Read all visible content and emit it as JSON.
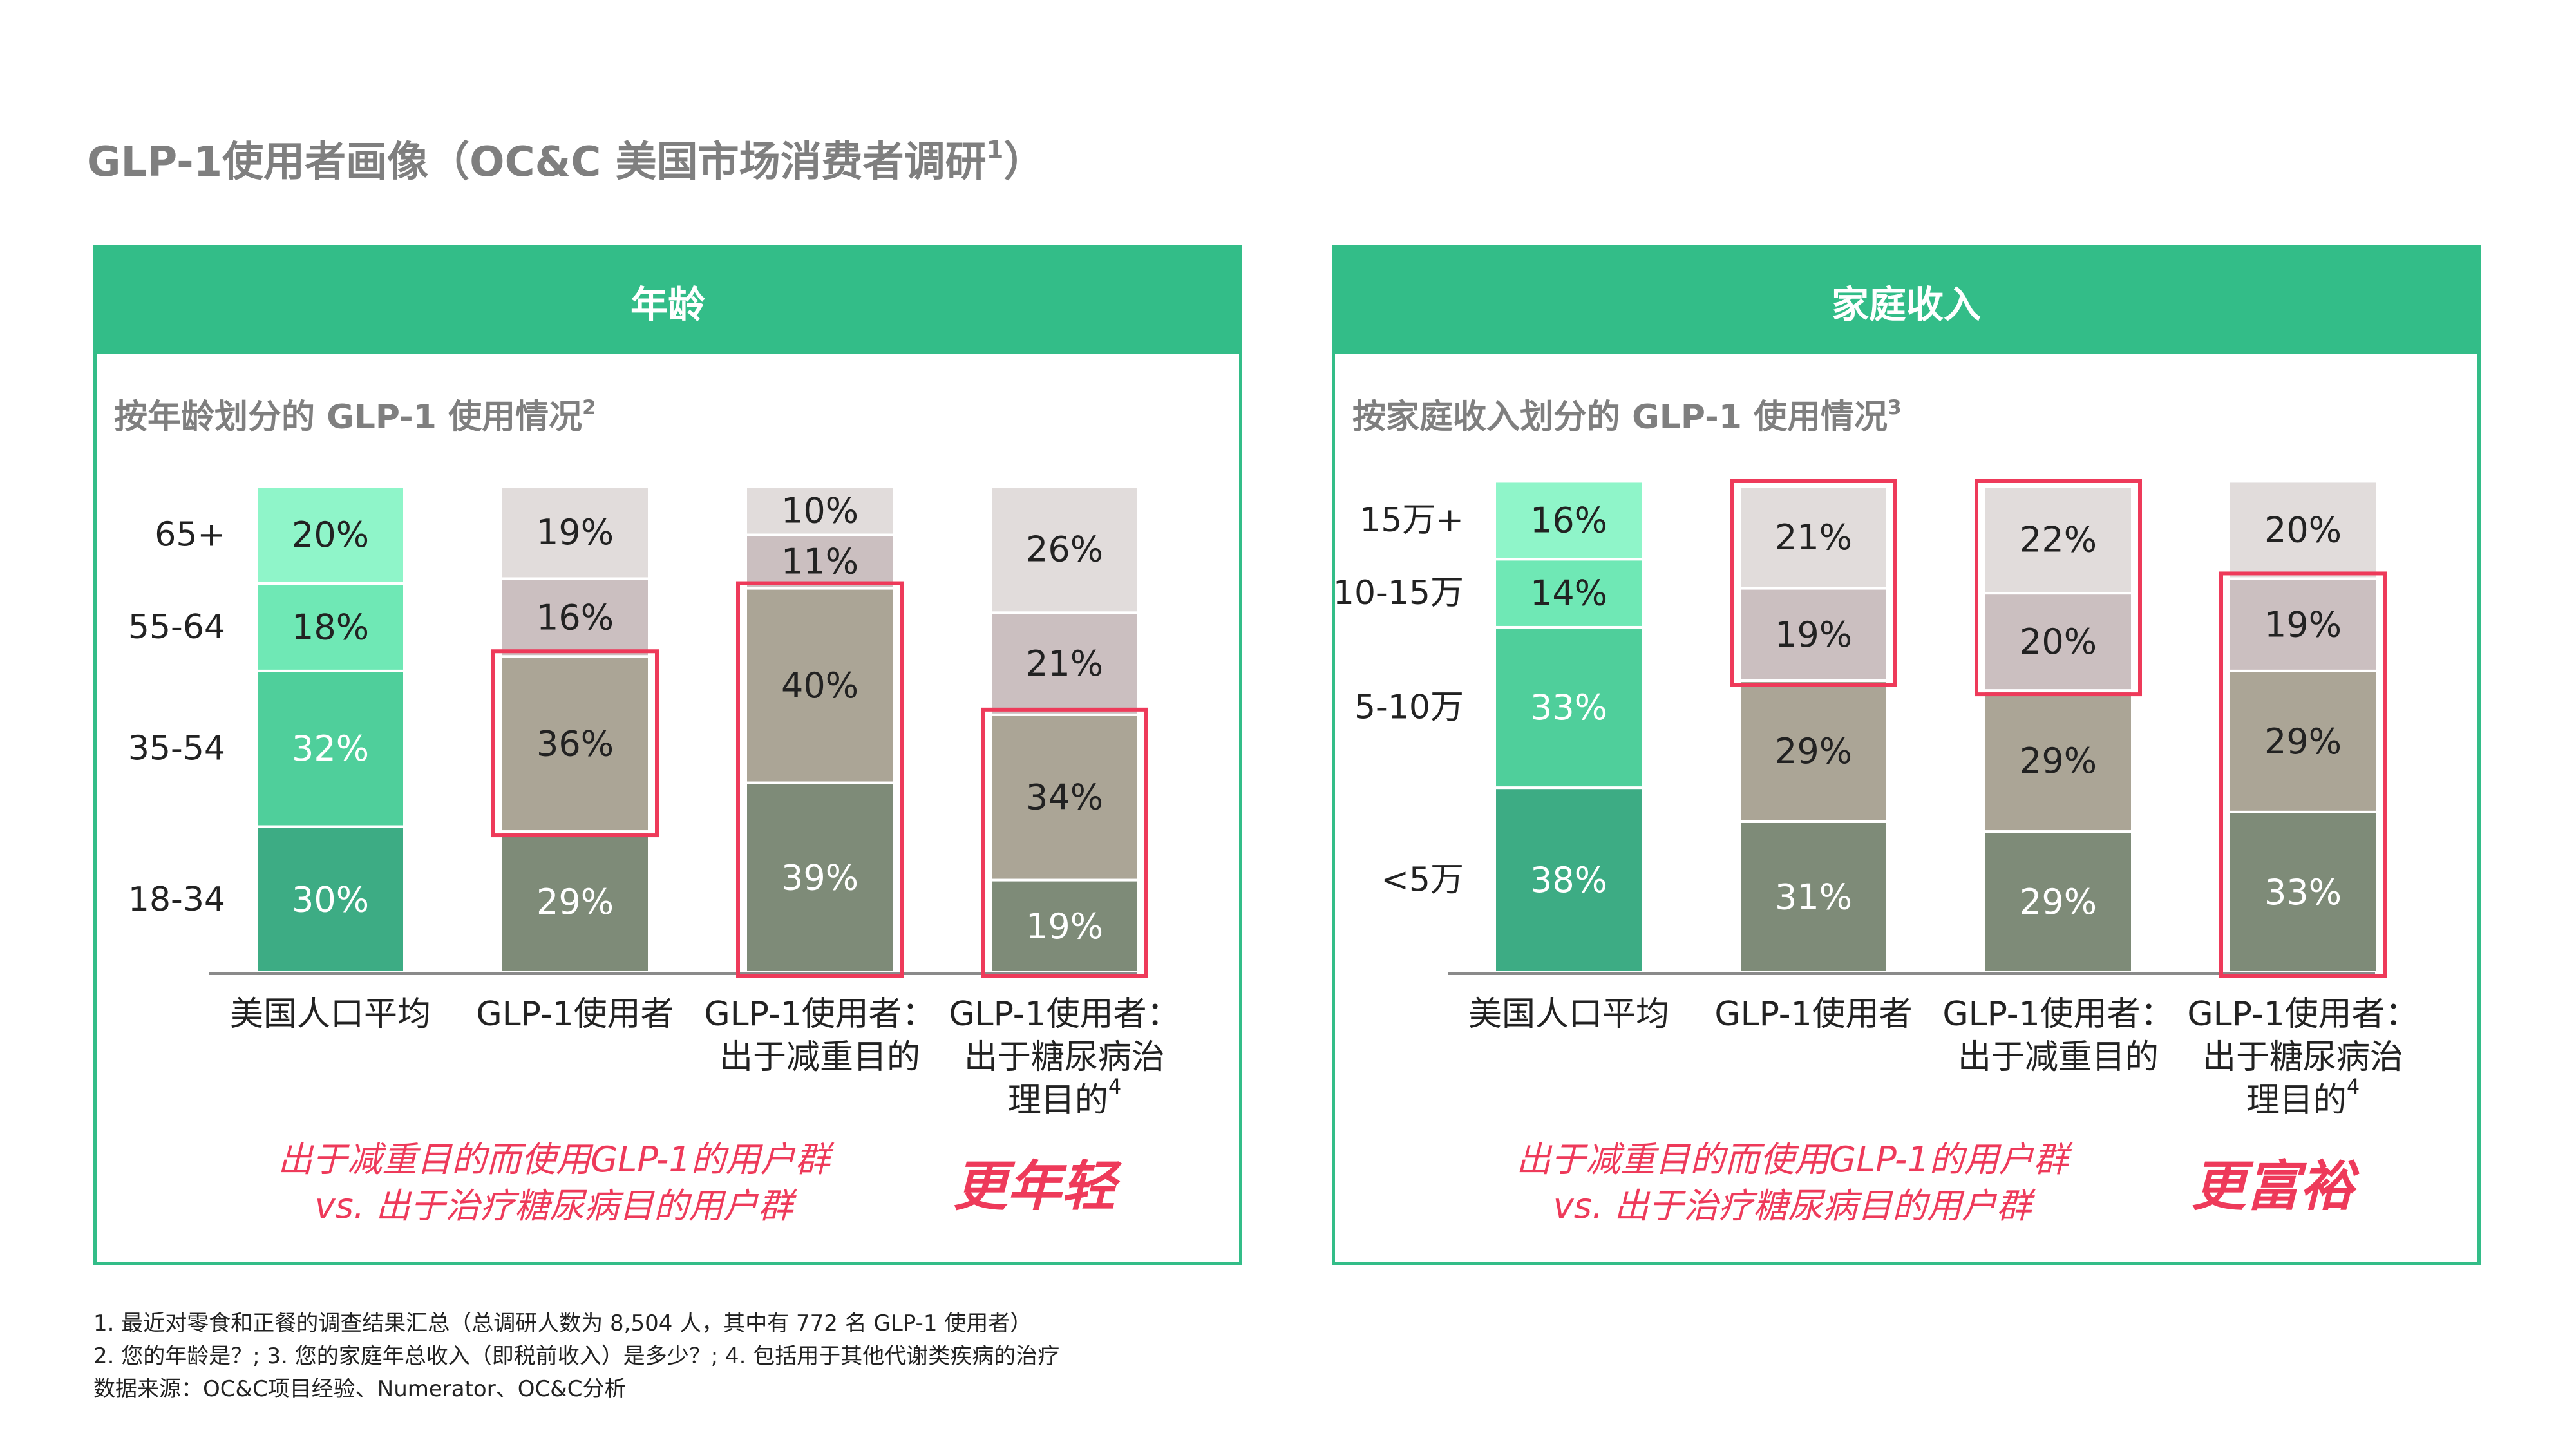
{
  "slide_title": "GLP-1使用者画像（OC&C 美国市场消费者调研",
  "slide_title_sup": "1",
  "slide_title_close": "）",
  "colors": {
    "panel_green": "#33bd88",
    "accent_red": "#ee3a5a",
    "title_grey": "#7f7f7f",
    "segments_population": [
      "#3dac84",
      "#4fcf9b",
      "#6fe8b5",
      "#8ff5c9"
    ],
    "segments_glp1": [
      "#7e8b78",
      "#aba596",
      "#cbbfc0",
      "#e1dcdb"
    ]
  },
  "panels": {
    "age": {
      "header": "年龄",
      "subtitle": "按年龄划分的 GLP-1 使用情况",
      "subtitle_sup": "2",
      "conclusion_line1": "出于减重目的而使用GLP-1的用户群",
      "conclusion_line2": "vs. 出于治疗糖尿病目的用户群",
      "highlight": "更年轻"
    },
    "income": {
      "header": "家庭收入",
      "subtitle": "按家庭收入划分的 GLP-1 使用情况",
      "subtitle_sup": "3",
      "conclusion_line1": "出于减重目的而使用GLP-1的用户群",
      "conclusion_line2": "vs. 出于治疗糖尿病目的用户群",
      "highlight": "更富裕"
    }
  },
  "chart_data": [
    {
      "type": "bar",
      "stacked": true,
      "normalized_percent": true,
      "title": "按年龄划分的 GLP-1 使用情况",
      "categories": [
        "美国人口平均",
        "GLP-1使用者",
        "GLP-1使用者：出于减重目的",
        "GLP-1使用者：出于糖尿病治理目的"
      ],
      "category_label_lines": [
        [
          "美国人口平均"
        ],
        [
          "GLP-1使用者"
        ],
        [
          "GLP-1使用者：",
          "出于减重目的"
        ],
        [
          "GLP-1使用者：",
          "出于糖尿病治",
          "理目的"
        ]
      ],
      "category_label_sup": [
        "",
        "",
        "",
        "4"
      ],
      "series": [
        {
          "name": "18-34",
          "values": [
            30,
            29,
            39,
            19
          ]
        },
        {
          "name": "35-54",
          "values": [
            32,
            36,
            40,
            34
          ]
        },
        {
          "name": "55-64",
          "values": [
            18,
            16,
            11,
            21
          ]
        },
        {
          "name": "65+",
          "values": [
            20,
            19,
            10,
            26
          ]
        }
      ],
      "series_labels": [
        "18-34",
        "35-54",
        "55-64",
        "65+"
      ],
      "highlighted": [
        {
          "category_index": 1,
          "series": [
            "35-54"
          ]
        },
        {
          "category_index": 2,
          "series": [
            "18-34",
            "35-54"
          ]
        },
        {
          "category_index": 3,
          "series": [
            "18-34",
            "35-54"
          ]
        }
      ],
      "ylim": [
        0,
        100
      ]
    },
    {
      "type": "bar",
      "stacked": true,
      "normalized_percent": true,
      "title": "按家庭收入划分的 GLP-1 使用情况",
      "categories": [
        "美国人口平均",
        "GLP-1使用者",
        "GLP-1使用者：出于减重目的",
        "GLP-1使用者：出于糖尿病治理目的"
      ],
      "category_label_lines": [
        [
          "美国人口平均"
        ],
        [
          "GLP-1使用者"
        ],
        [
          "GLP-1使用者：",
          "出于减重目的"
        ],
        [
          "GLP-1使用者：",
          "出于糖尿病治",
          "理目的"
        ]
      ],
      "category_label_sup": [
        "",
        "",
        "",
        "4"
      ],
      "series": [
        {
          "name": "<5万",
          "values": [
            38,
            31,
            29,
            33
          ]
        },
        {
          "name": "5-10万",
          "values": [
            33,
            29,
            29,
            29
          ]
        },
        {
          "name": "10-15万",
          "values": [
            14,
            19,
            20,
            19
          ]
        },
        {
          "name": "15万+",
          "values": [
            16,
            21,
            22,
            20
          ]
        }
      ],
      "series_labels": [
        "<5万",
        "5-10万",
        "10-15万",
        "15万+"
      ],
      "highlighted": [
        {
          "category_index": 1,
          "series": [
            "10-15万",
            "15万+"
          ]
        },
        {
          "category_index": 2,
          "series": [
            "10-15万",
            "15万+"
          ]
        },
        {
          "category_index": 3,
          "series": [
            "<5万",
            "5-10万",
            "10-15万"
          ]
        }
      ],
      "ylim": [
        0,
        100
      ]
    }
  ],
  "footnotes": [
    "1. 最近对零食和正餐的调查结果汇总（总调研人数为 8,504 人，其中有 772 名 GLP-1 使用者）",
    "2. 您的年龄是？; 3. 您的家庭年总收入（即税前收入）是多少？; 4. 包括用于其他代谢类疾病的治疗",
    "数据来源：OC&C项目经验、Numerator、OC&C分析"
  ]
}
